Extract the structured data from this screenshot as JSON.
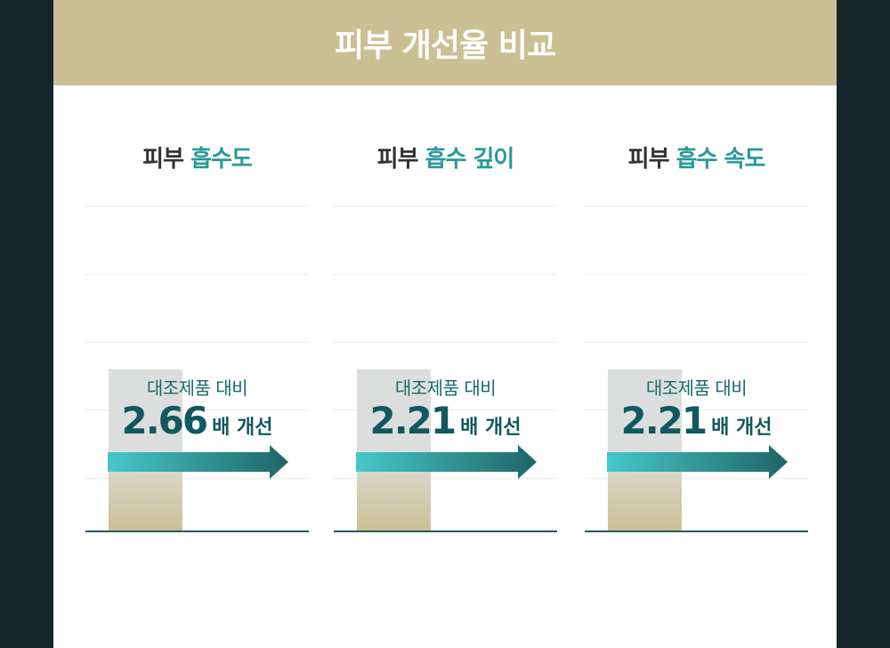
{
  "header": {
    "title": "피부 개선율 비교"
  },
  "panels": [
    {
      "title_prefix": "피부",
      "title_accent": "흡수도",
      "label": "대조제품 대비",
      "value": "2.66",
      "suffix": "배 개선"
    },
    {
      "title_prefix": "피부",
      "title_accent": "흡수 깊이",
      "label": "대조제품 대비",
      "value": "2.21",
      "suffix": "배 개선"
    },
    {
      "title_prefix": "피부",
      "title_accent": "흡수 속도",
      "label": "대조제품 대비",
      "value": "2.21",
      "suffix": "배 개선"
    }
  ],
  "colors": {
    "header_bg": "#cbbf94",
    "accent": "#2a9a98",
    "value_text": "#11595e",
    "arrow_start": "#45c9c9",
    "arrow_end": "#1f6466",
    "control_bar": "#cbbf94"
  },
  "chart_data": {
    "type": "bar",
    "categories": [
      "피부 흡수도",
      "피부 흡수 깊이",
      "피부 흡수 속도"
    ],
    "series": [
      {
        "values": [
          2.66,
          2.21,
          2.21
        ]
      }
    ],
    "annotations": [
      "대조제품 대비 2.66 배 개선",
      "대조제품 대비 2.21 배 개선",
      "대조제품 대비 2.21 배 개선"
    ]
  }
}
